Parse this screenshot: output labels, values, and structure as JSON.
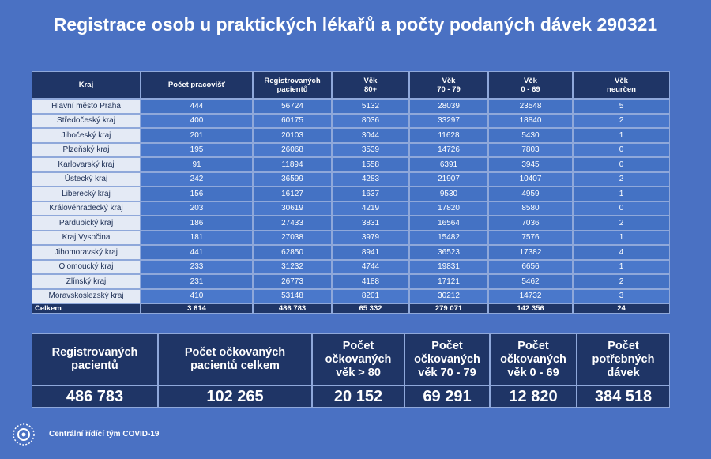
{
  "title": "Registrace osob u praktických lékařů a počty podaných dávek 290321",
  "table": {
    "header": [
      "Kraj",
      "Počet pracovišť",
      "Registrovaných\npacientů",
      "Věk\n80+",
      "Věk\n70 - 79",
      "Věk\n0 - 69",
      "Věk\nneurčen"
    ],
    "rows": [
      [
        "Hlavní město Praha",
        "444",
        "56724",
        "5132",
        "28039",
        "23548",
        "5"
      ],
      [
        "Středočeský kraj",
        "400",
        "60175",
        "8036",
        "33297",
        "18840",
        "2"
      ],
      [
        "Jihočeský kraj",
        "201",
        "20103",
        "3044",
        "11628",
        "5430",
        "1"
      ],
      [
        "Plzeňský kraj",
        "195",
        "26068",
        "3539",
        "14726",
        "7803",
        "0"
      ],
      [
        "Karlovarský kraj",
        "91",
        "11894",
        "1558",
        "6391",
        "3945",
        "0"
      ],
      [
        "Ústecký kraj",
        "242",
        "36599",
        "4283",
        "21907",
        "10407",
        "2"
      ],
      [
        "Liberecký kraj",
        "156",
        "16127",
        "1637",
        "9530",
        "4959",
        "1"
      ],
      [
        "Královéhradecký kraj",
        "203",
        "30619",
        "4219",
        "17820",
        "8580",
        "0"
      ],
      [
        "Pardubický kraj",
        "186",
        "27433",
        "3831",
        "16564",
        "7036",
        "2"
      ],
      [
        "Kraj Vysočina",
        "181",
        "27038",
        "3979",
        "15482",
        "7576",
        "1"
      ],
      [
        "Jihomoravský kraj",
        "441",
        "62850",
        "8941",
        "36523",
        "17382",
        "4"
      ],
      [
        "Olomoucký kraj",
        "233",
        "31232",
        "4744",
        "19831",
        "6656",
        "1"
      ],
      [
        "Zlínský kraj",
        "231",
        "26773",
        "4188",
        "17121",
        "5462",
        "2"
      ],
      [
        "Moravskoslezský kraj",
        "410",
        "53148",
        "8201",
        "30212",
        "14732",
        "3"
      ]
    ],
    "total": [
      "Celkem",
      "3 614",
      "486 783",
      "65 332",
      "279 071",
      "142 356",
      "24"
    ]
  },
  "summary": {
    "header": [
      "Registrovaných\npacientů",
      "Počet očkovaných\npacientů celkem",
      "Počet\nočkovaných\nvěk > 80",
      "Počet\nočkovaných\nvěk 70 - 79",
      "Počet\nočkovaných\nvěk 0 - 69",
      "Počet\npotřebných\ndávek"
    ],
    "values": [
      "486 783",
      "102 265",
      "20 152",
      "69 291",
      "12 820",
      "384 518"
    ]
  },
  "footer": "Centrální řídící tým COVID-19"
}
